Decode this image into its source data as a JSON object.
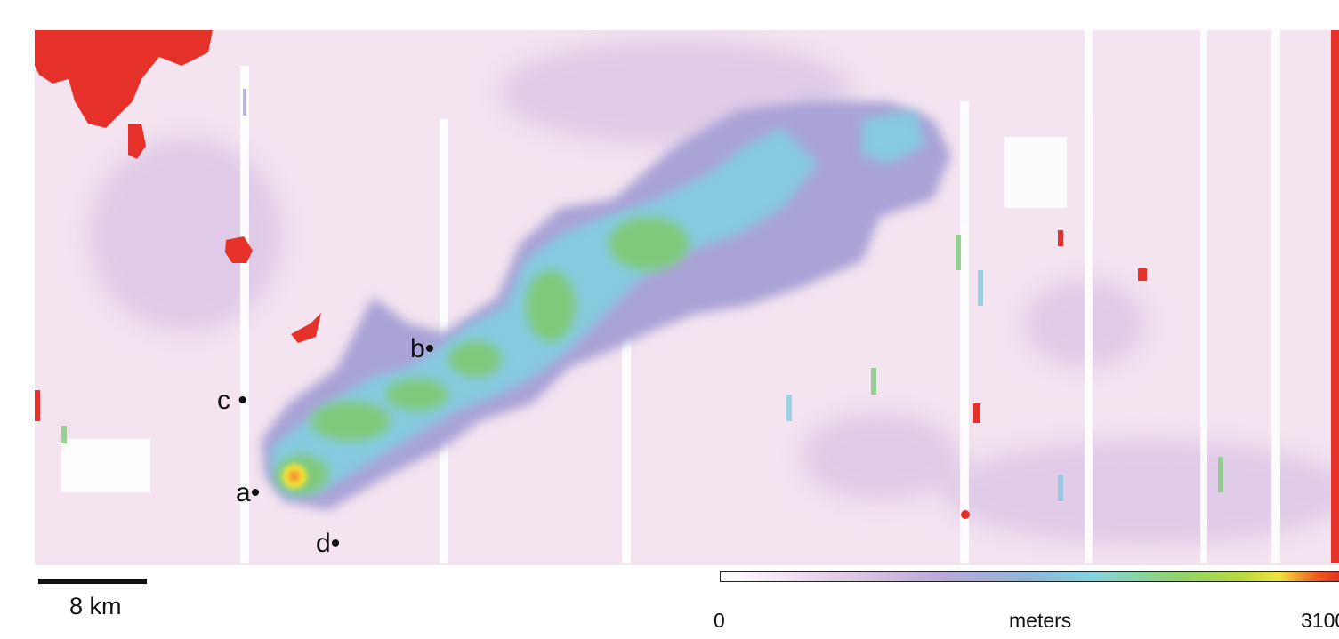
{
  "map": {
    "point_labels": [
      {
        "id": "a",
        "text": "a"
      },
      {
        "id": "b",
        "text": "b"
      },
      {
        "id": "c",
        "text": "c"
      },
      {
        "id": "d",
        "text": "d"
      }
    ],
    "scale_bar": {
      "label": "8 km",
      "distance_km": 8
    },
    "colorbar": {
      "min_label": "0",
      "unit_label": "meters",
      "max_label": "3100",
      "min_value": 0,
      "max_value": 3100,
      "colors": [
        "#ffffff",
        "#e6cde6",
        "#b9a9d9",
        "#8fb7d9",
        "#86d4e0",
        "#8fd46c",
        "#bada3d",
        "#f0e23a",
        "#f05a1e",
        "#e62f1f"
      ]
    },
    "colors": {
      "background": "#f4e4f0",
      "low": "#dcc6e6",
      "mid_low": "#a9a3d6",
      "mid": "#86cbe0",
      "mid_high": "#7fc97a",
      "peak": "#f2e43a",
      "saturated": "#e6312a"
    }
  }
}
